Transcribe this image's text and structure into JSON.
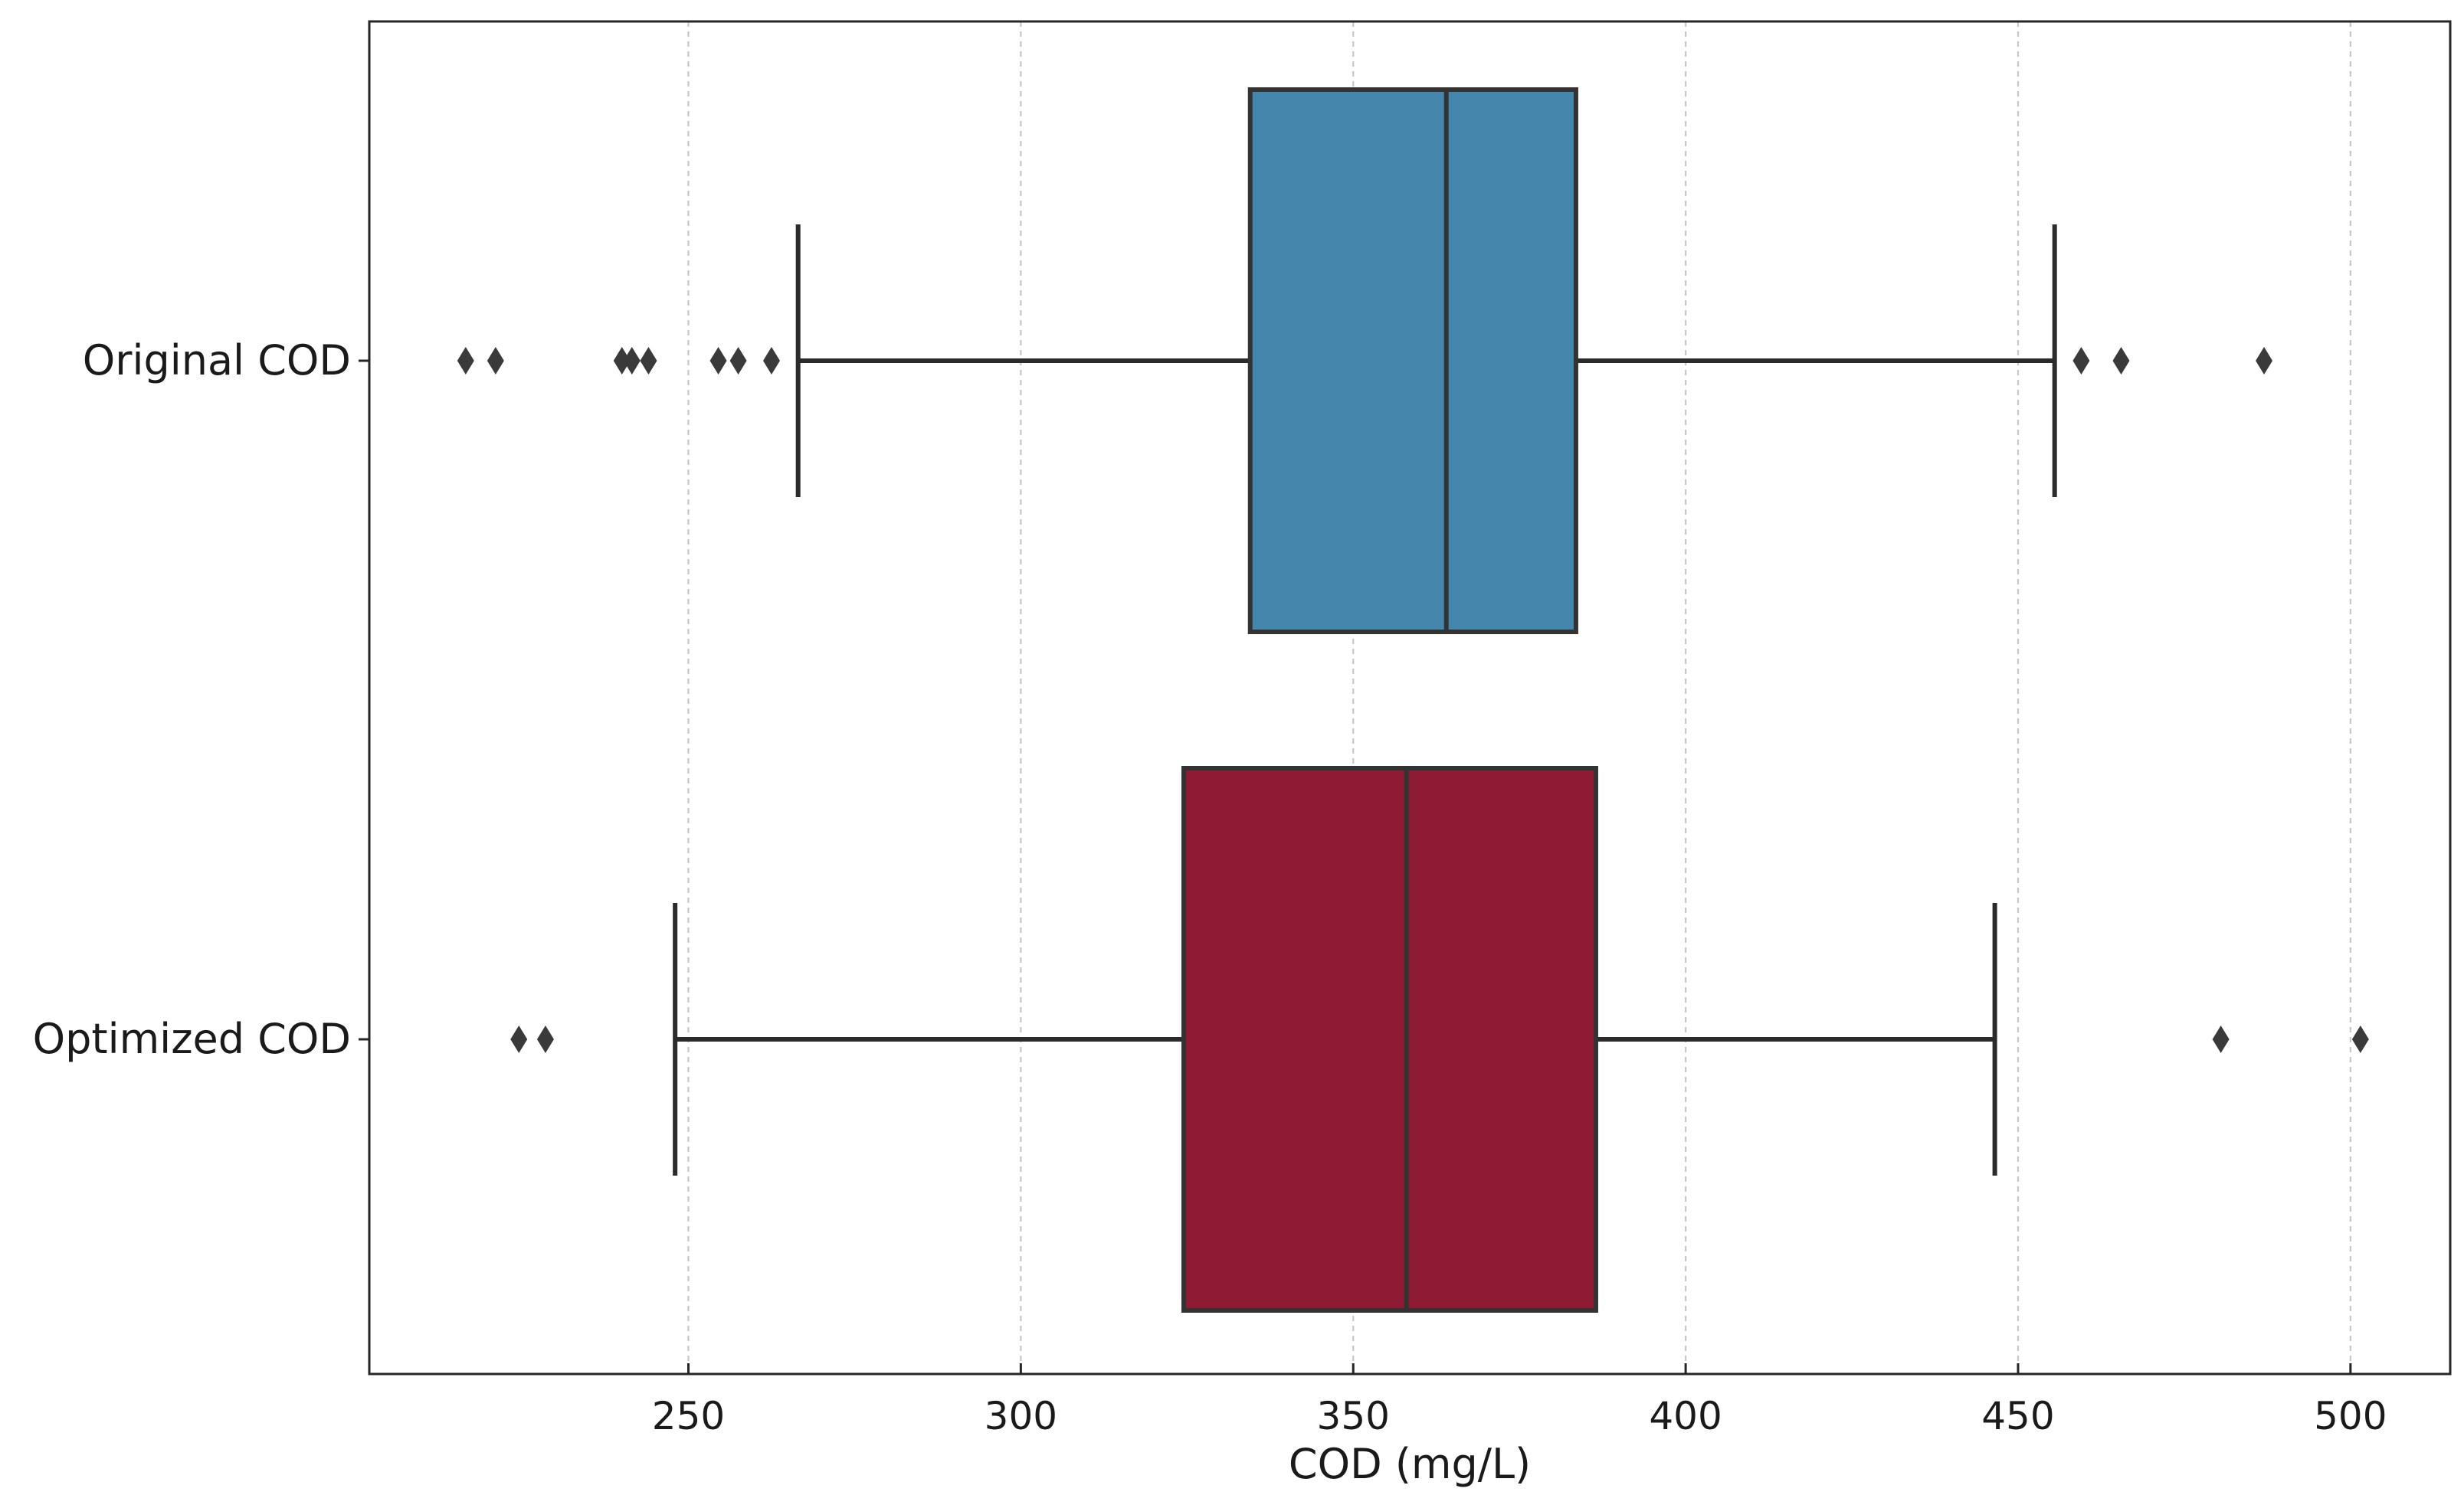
{
  "chart_data": {
    "type": "boxplot",
    "orientation": "horizontal",
    "xlabel": "COD (mg/L)",
    "ylabel": "",
    "xlim": [
      202,
      515
    ],
    "xticks": [
      250,
      300,
      350,
      400,
      450,
      500
    ],
    "grid": "vertical dashed",
    "categories": [
      "Original COD",
      "Optimized COD"
    ],
    "series": [
      {
        "name": "Original COD",
        "color": "#4586ac",
        "whisker_low": 266.5,
        "q1": 334.5,
        "median": 364,
        "q3": 383.5,
        "whisker_high": 455.5,
        "outliers": [
          216.5,
          221,
          240,
          241.5,
          244,
          254.5,
          257.5,
          262.5,
          459.5,
          465.5,
          487
        ]
      },
      {
        "name": "Optimized COD",
        "color": "#8f1a33",
        "whisker_low": 248,
        "q1": 324.5,
        "median": 358,
        "q3": 386.5,
        "whisker_high": 446.5,
        "outliers": [
          224.5,
          228.5,
          480.5,
          501.5
        ]
      }
    ]
  }
}
